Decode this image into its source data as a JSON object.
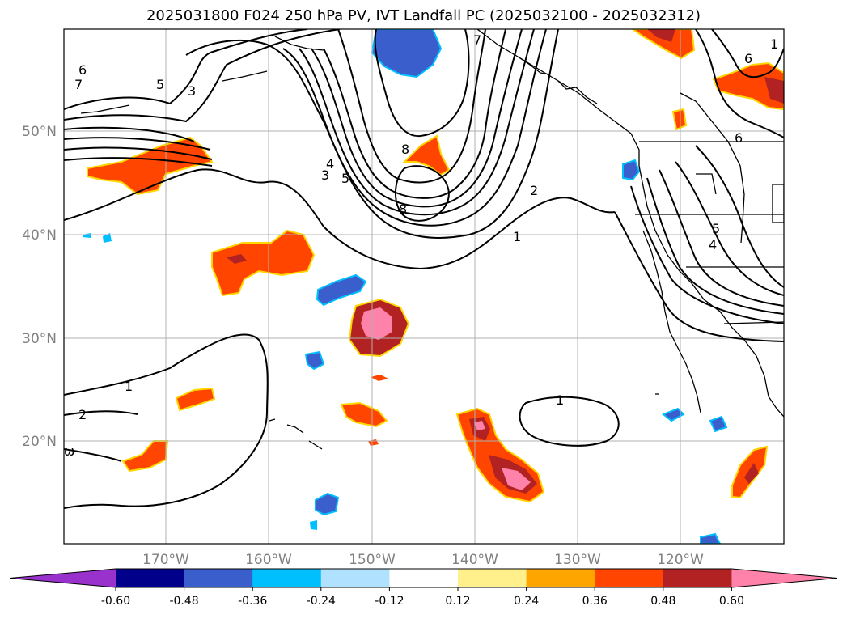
{
  "title": "2025031800 F024 250 hPa PV, IVT Landfall PC (2025032100 - 2025032312)",
  "map": {
    "extent_lon": [
      -180,
      -110
    ],
    "extent_lat": [
      10,
      60
    ],
    "lon_labels": [
      "170°W",
      "160°W",
      "150°W",
      "140°W",
      "130°W",
      "120°W"
    ],
    "lat_labels": [
      "20°N",
      "30°N",
      "40°N",
      "50°N"
    ],
    "grid": true,
    "pv_contour_labels": [
      "6",
      "7",
      "5",
      "3",
      "4",
      "3",
      "5",
      "8",
      "8",
      "2",
      "1",
      "7",
      "6",
      "6",
      "5",
      "4",
      "1",
      "2",
      "1",
      "1",
      "ω"
    ]
  },
  "colorbar": {
    "ticks": [
      "-0.60",
      "-0.48",
      "-0.36",
      "-0.24",
      "-0.12",
      "0.12",
      "0.24",
      "0.36",
      "0.48",
      "0.60"
    ],
    "colors": [
      "#9932cc",
      "#00008b",
      "#3a5fcd",
      "#00bfff",
      "#b0e2ff",
      "#ffffff",
      "#fff08c",
      "#ffa500",
      "#ff4500",
      "#b22222",
      "#ff82ab"
    ],
    "extend": "both"
  }
}
